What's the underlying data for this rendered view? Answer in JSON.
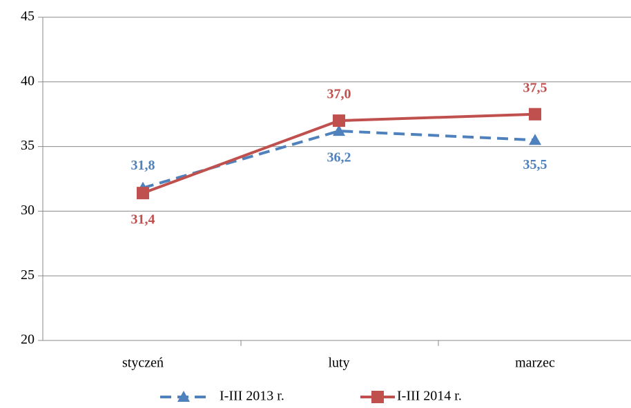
{
  "chart_data": {
    "type": "line",
    "categories": [
      "styczeń",
      "luty",
      "marzec"
    ],
    "series": [
      {
        "name": "I-III 2013 r.",
        "color": "#4f81bd",
        "dashed": true,
        "marker": "triangle",
        "values": [
          31.8,
          36.2,
          35.5
        ],
        "value_labels": [
          "31,8",
          "36,2",
          "35,5"
        ]
      },
      {
        "name": "I-III 2014 r.",
        "color": "#c0504d",
        "dashed": false,
        "marker": "square",
        "values": [
          31.4,
          37.0,
          37.5
        ],
        "value_labels": [
          "31,4",
          "37,0",
          "37,5"
        ]
      }
    ],
    "ylim": [
      20,
      45
    ],
    "yticks": [
      20,
      25,
      30,
      35,
      40,
      45
    ],
    "grid": true,
    "legend": "bottom"
  }
}
